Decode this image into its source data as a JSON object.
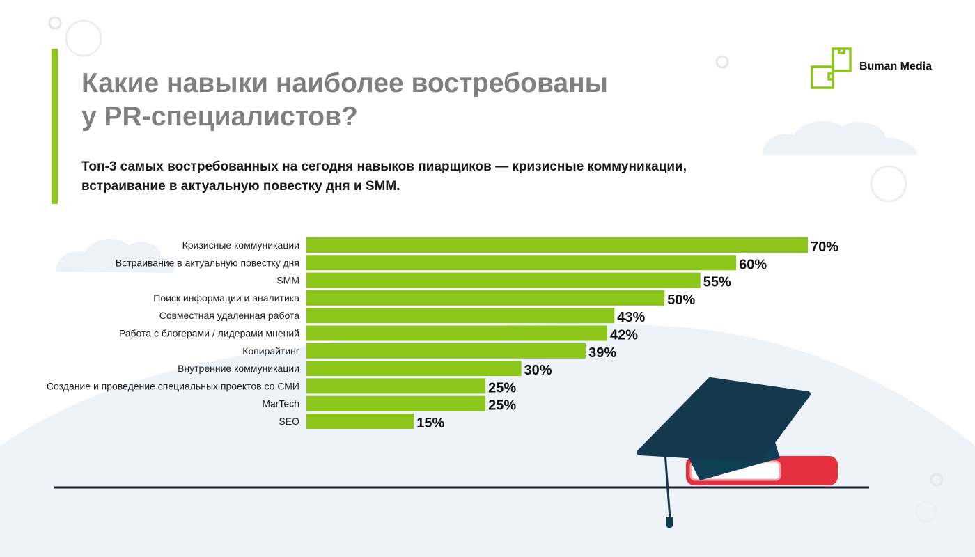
{
  "header": {
    "title_line1": "Какие навыки наиболее востребованы",
    "title_line2": "у PR-специалистов?",
    "subtitle_line1": "Топ-3 самых востребованных на сегодня навыков пиарщиков — кризисные коммуникации,",
    "subtitle_line2": "встраивание в актуальную повестку дня и SMM."
  },
  "brand": {
    "name": "Buman Media",
    "logo_icon": "puzzle-squares-icon"
  },
  "colors": {
    "bar": "#8cc61a",
    "accent": "#8cc61a",
    "title": "#808080",
    "cap": "#14394f",
    "book": "#e5303e"
  },
  "chart_data": {
    "type": "bar",
    "orientation": "horizontal",
    "categories": [
      "Кризисные коммуникации",
      "Встраивание в актуальную повестку дня",
      "SMM",
      "Поиск информации и аналитика",
      "Совместная удаленная работа",
      "Работа с блогерами / лидерами мнений",
      "Копирайтинг",
      "Внутренние коммуникации",
      "Создание и проведение специальных проектов со СМИ",
      "MarTech",
      "SEO"
    ],
    "values": [
      70,
      60,
      55,
      50,
      43,
      42,
      39,
      30,
      25,
      25,
      15
    ],
    "value_labels": [
      "70%",
      "60%",
      "55%",
      "50%",
      "43%",
      "42%",
      "39%",
      "30%",
      "25%",
      "25%",
      "15%"
    ],
    "unit": "%",
    "grid": false
  }
}
